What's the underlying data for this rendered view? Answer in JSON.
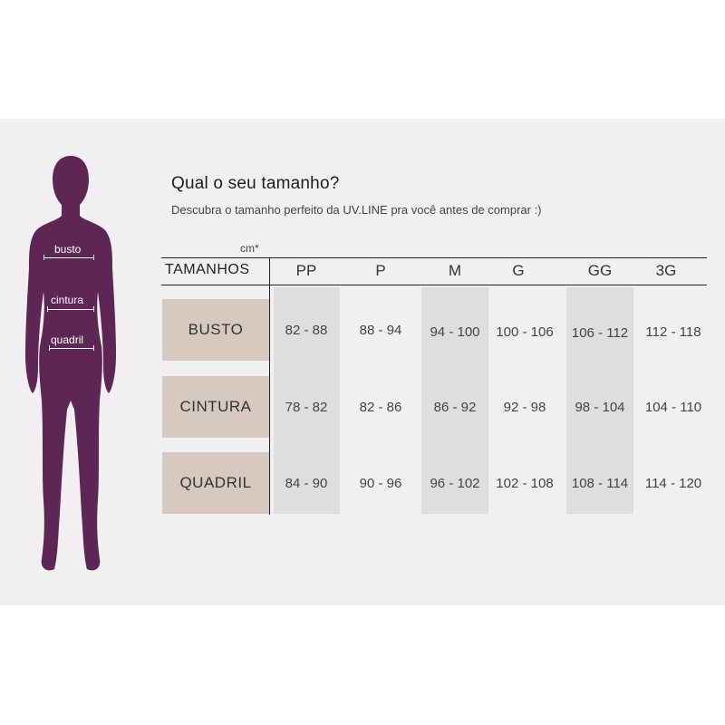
{
  "figure": {
    "color": "#5d2654",
    "labels": [
      "busto",
      "cintura",
      "quadril"
    ]
  },
  "heading": {
    "title": "Qual o seu tamanho?",
    "subtitle": "Descubra o tamanho perfeito da UV.LINE pra você antes de comprar :)"
  },
  "table": {
    "unit": "cm*",
    "first_header": "TAMANHOS",
    "sizes": [
      "PP",
      "P",
      "M",
      "G",
      "GG",
      "3G"
    ],
    "rows": [
      {
        "label": "BUSTO",
        "values": [
          "82 - 88",
          "88 - 94",
          "94 - 100",
          "100 - 106",
          "106 - 112",
          "112 - 118"
        ]
      },
      {
        "label": "CINTURA",
        "values": [
          "78 - 82",
          "82 - 86",
          "86 - 92",
          "92 - 98",
          "98 - 104",
          "104 - 110"
        ]
      },
      {
        "label": "QUADRIL",
        "values": [
          "84 - 90",
          "90 - 96",
          "96 - 102",
          "102 - 108",
          "108 - 114",
          "114 - 120"
        ]
      }
    ],
    "label_bg": "#d7c9bf",
    "stripe_bg": "#dedede"
  }
}
